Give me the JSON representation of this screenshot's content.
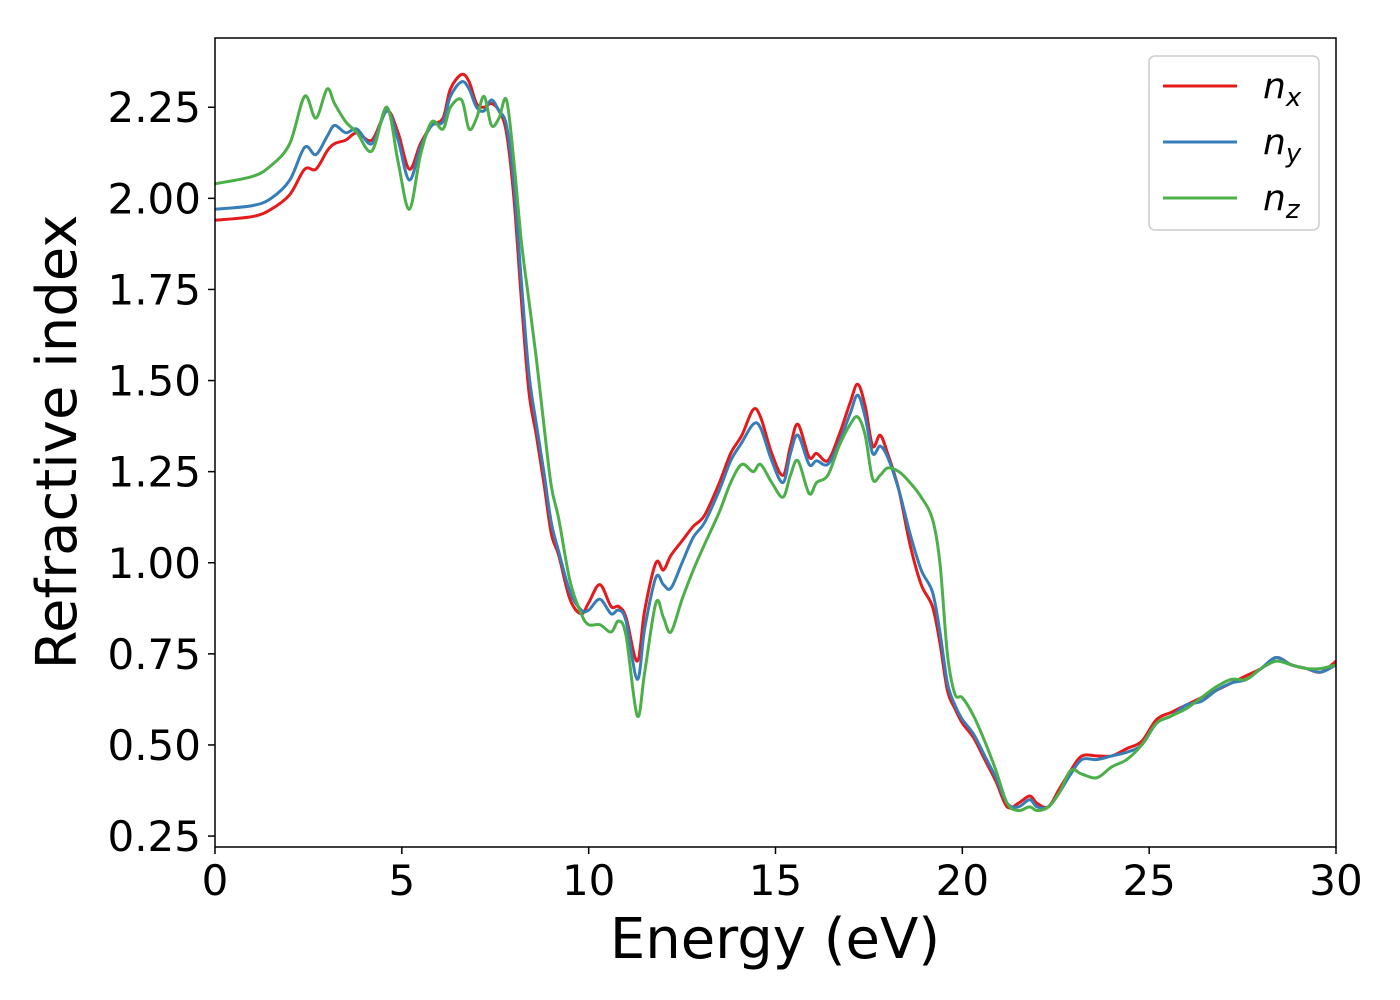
{
  "chart_data": {
    "type": "line",
    "title": "",
    "xlabel": "Energy (eV)",
    "ylabel": "Refractive index",
    "xlim": [
      0,
      30
    ],
    "ylim": [
      0.22,
      2.44
    ],
    "x_ticks": [
      0,
      5,
      10,
      15,
      20,
      25,
      30
    ],
    "x_tick_labels": [
      "0",
      "5",
      "10",
      "15",
      "20",
      "25",
      "30"
    ],
    "y_ticks": [
      0.25,
      0.5,
      0.75,
      1.0,
      1.25,
      1.5,
      1.75,
      2.0,
      2.25
    ],
    "y_tick_labels": [
      "0.25",
      "0.50",
      "0.75",
      "1.00",
      "1.25",
      "1.50",
      "1.75",
      "2.00",
      "2.25"
    ],
    "grid": false,
    "legend_position": "top-right",
    "series": [
      {
        "name": "n_x",
        "label_main": "n",
        "label_sub": "x",
        "color": "#e41a1c",
        "x": [
          0,
          1.0,
          1.5,
          2.0,
          2.4,
          2.7,
          3.0,
          3.2,
          3.5,
          3.8,
          4.2,
          4.6,
          4.9,
          5.2,
          5.5,
          5.8,
          6.1,
          6.3,
          6.6,
          6.8,
          7.0,
          7.2,
          7.4,
          7.6,
          7.8,
          8.0,
          8.2,
          8.4,
          8.6,
          8.8,
          9.0,
          9.2,
          9.5,
          9.8,
          10.0,
          10.3,
          10.6,
          10.8,
          11.0,
          11.3,
          11.5,
          11.8,
          12.0,
          12.2,
          12.5,
          12.8,
          13.1,
          13.5,
          13.8,
          14.1,
          14.4,
          14.6,
          14.9,
          15.2,
          15.4,
          15.6,
          15.9,
          16.1,
          16.4,
          16.7,
          17.0,
          17.2,
          17.4,
          17.6,
          17.8,
          18.0,
          18.3,
          18.6,
          18.9,
          19.2,
          19.4,
          19.6,
          19.8,
          20.0,
          20.3,
          20.6,
          20.9,
          21.2,
          21.5,
          21.8,
          22.0,
          22.3,
          22.6,
          22.9,
          23.2,
          23.6,
          24.0,
          24.4,
          24.8,
          25.2,
          25.6,
          26.0,
          26.4,
          26.8,
          27.2,
          27.6,
          28.0,
          28.4,
          28.8,
          29.2,
          29.6,
          30.0
        ],
        "y": [
          1.94,
          1.95,
          1.97,
          2.01,
          2.08,
          2.08,
          2.13,
          2.15,
          2.16,
          2.18,
          2.16,
          2.24,
          2.18,
          2.08,
          2.15,
          2.2,
          2.22,
          2.3,
          2.34,
          2.32,
          2.26,
          2.25,
          2.26,
          2.24,
          2.18,
          2.0,
          1.72,
          1.47,
          1.35,
          1.22,
          1.08,
          1.02,
          0.9,
          0.86,
          0.89,
          0.94,
          0.88,
          0.88,
          0.85,
          0.73,
          0.87,
          1.0,
          0.98,
          1.02,
          1.06,
          1.1,
          1.13,
          1.22,
          1.3,
          1.35,
          1.42,
          1.4,
          1.3,
          1.24,
          1.32,
          1.38,
          1.29,
          1.3,
          1.28,
          1.35,
          1.44,
          1.49,
          1.43,
          1.32,
          1.35,
          1.3,
          1.2,
          1.05,
          0.94,
          0.88,
          0.78,
          0.65,
          0.6,
          0.56,
          0.52,
          0.46,
          0.4,
          0.33,
          0.34,
          0.36,
          0.34,
          0.33,
          0.38,
          0.43,
          0.47,
          0.47,
          0.47,
          0.49,
          0.51,
          0.57,
          0.59,
          0.61,
          0.63,
          0.65,
          0.67,
          0.69,
          0.71,
          0.74,
          0.72,
          0.71,
          0.7,
          0.73
        ]
      },
      {
        "name": "n_y",
        "label_main": "n",
        "label_sub": "y",
        "color": "#377eb8",
        "x": [
          0,
          1.0,
          1.5,
          2.0,
          2.4,
          2.7,
          3.0,
          3.2,
          3.5,
          3.8,
          4.2,
          4.6,
          4.9,
          5.2,
          5.5,
          5.8,
          6.1,
          6.3,
          6.6,
          6.8,
          7.0,
          7.2,
          7.4,
          7.6,
          7.8,
          8.0,
          8.2,
          8.4,
          8.6,
          8.8,
          9.0,
          9.2,
          9.5,
          9.8,
          10.0,
          10.3,
          10.6,
          10.8,
          11.0,
          11.3,
          11.5,
          11.8,
          12.0,
          12.2,
          12.5,
          12.8,
          13.1,
          13.5,
          13.8,
          14.1,
          14.4,
          14.6,
          14.9,
          15.2,
          15.4,
          15.6,
          15.9,
          16.1,
          16.4,
          16.7,
          17.0,
          17.2,
          17.4,
          17.6,
          17.8,
          18.0,
          18.3,
          18.6,
          18.9,
          19.2,
          19.4,
          19.6,
          19.8,
          20.0,
          20.3,
          20.6,
          20.9,
          21.2,
          21.5,
          21.8,
          22.0,
          22.3,
          22.6,
          22.9,
          23.2,
          23.6,
          24.0,
          24.4,
          24.8,
          25.2,
          25.6,
          26.0,
          26.4,
          26.8,
          27.2,
          27.6,
          28.0,
          28.4,
          28.8,
          29.2,
          29.6,
          30.0
        ],
        "y": [
          1.97,
          1.98,
          2.0,
          2.05,
          2.14,
          2.12,
          2.17,
          2.2,
          2.18,
          2.19,
          2.15,
          2.24,
          2.16,
          2.05,
          2.14,
          2.2,
          2.21,
          2.28,
          2.32,
          2.3,
          2.25,
          2.24,
          2.27,
          2.24,
          2.2,
          2.04,
          1.77,
          1.52,
          1.38,
          1.25,
          1.11,
          1.03,
          0.92,
          0.87,
          0.87,
          0.9,
          0.86,
          0.87,
          0.84,
          0.68,
          0.82,
          0.96,
          0.94,
          0.93,
          1.0,
          1.07,
          1.11,
          1.2,
          1.28,
          1.33,
          1.38,
          1.37,
          1.28,
          1.22,
          1.3,
          1.35,
          1.27,
          1.28,
          1.27,
          1.33,
          1.41,
          1.46,
          1.4,
          1.3,
          1.32,
          1.29,
          1.2,
          1.08,
          0.98,
          0.92,
          0.81,
          0.67,
          0.61,
          0.57,
          0.53,
          0.47,
          0.41,
          0.34,
          0.33,
          0.35,
          0.33,
          0.33,
          0.37,
          0.42,
          0.46,
          0.46,
          0.47,
          0.48,
          0.5,
          0.56,
          0.58,
          0.61,
          0.62,
          0.65,
          0.67,
          0.68,
          0.71,
          0.74,
          0.72,
          0.71,
          0.7,
          0.72
        ]
      },
      {
        "name": "n_z",
        "label_main": "n",
        "label_sub": "z",
        "color": "#4daf4a",
        "x": [
          0,
          1.0,
          1.5,
          2.0,
          2.4,
          2.7,
          3.0,
          3.2,
          3.5,
          3.8,
          4.2,
          4.6,
          4.9,
          5.2,
          5.5,
          5.8,
          6.1,
          6.3,
          6.6,
          6.8,
          7.0,
          7.2,
          7.4,
          7.6,
          7.8,
          8.0,
          8.2,
          8.4,
          8.6,
          8.8,
          9.0,
          9.2,
          9.5,
          9.8,
          10.0,
          10.3,
          10.6,
          10.8,
          11.0,
          11.3,
          11.5,
          11.8,
          12.0,
          12.2,
          12.5,
          12.8,
          13.1,
          13.5,
          13.8,
          14.1,
          14.4,
          14.6,
          14.9,
          15.2,
          15.4,
          15.6,
          15.9,
          16.1,
          16.4,
          16.7,
          17.0,
          17.2,
          17.4,
          17.6,
          17.8,
          18.0,
          18.3,
          18.6,
          18.9,
          19.2,
          19.4,
          19.6,
          19.8,
          20.0,
          20.3,
          20.6,
          20.9,
          21.2,
          21.5,
          21.8,
          22.0,
          22.3,
          22.6,
          22.9,
          23.2,
          23.6,
          24.0,
          24.4,
          24.8,
          25.2,
          25.6,
          26.0,
          26.4,
          26.8,
          27.2,
          27.6,
          28.0,
          28.4,
          28.8,
          29.2,
          29.6,
          30.0
        ],
        "y": [
          2.04,
          2.06,
          2.09,
          2.15,
          2.28,
          2.22,
          2.3,
          2.26,
          2.21,
          2.18,
          2.13,
          2.25,
          2.1,
          1.97,
          2.12,
          2.21,
          2.19,
          2.25,
          2.27,
          2.19,
          2.22,
          2.28,
          2.2,
          2.22,
          2.27,
          2.1,
          1.88,
          1.72,
          1.56,
          1.38,
          1.21,
          1.12,
          0.95,
          0.86,
          0.83,
          0.83,
          0.81,
          0.84,
          0.8,
          0.58,
          0.7,
          0.89,
          0.85,
          0.81,
          0.9,
          0.98,
          1.05,
          1.14,
          1.22,
          1.27,
          1.25,
          1.27,
          1.22,
          1.18,
          1.24,
          1.28,
          1.19,
          1.22,
          1.24,
          1.32,
          1.38,
          1.4,
          1.35,
          1.23,
          1.24,
          1.26,
          1.25,
          1.22,
          1.18,
          1.12,
          1.0,
          0.75,
          0.64,
          0.63,
          0.58,
          0.51,
          0.43,
          0.34,
          0.32,
          0.33,
          0.32,
          0.33,
          0.37,
          0.43,
          0.42,
          0.41,
          0.44,
          0.46,
          0.5,
          0.56,
          0.58,
          0.6,
          0.63,
          0.66,
          0.68,
          0.68,
          0.71,
          0.73,
          0.72,
          0.71,
          0.71,
          0.72
        ]
      }
    ]
  }
}
